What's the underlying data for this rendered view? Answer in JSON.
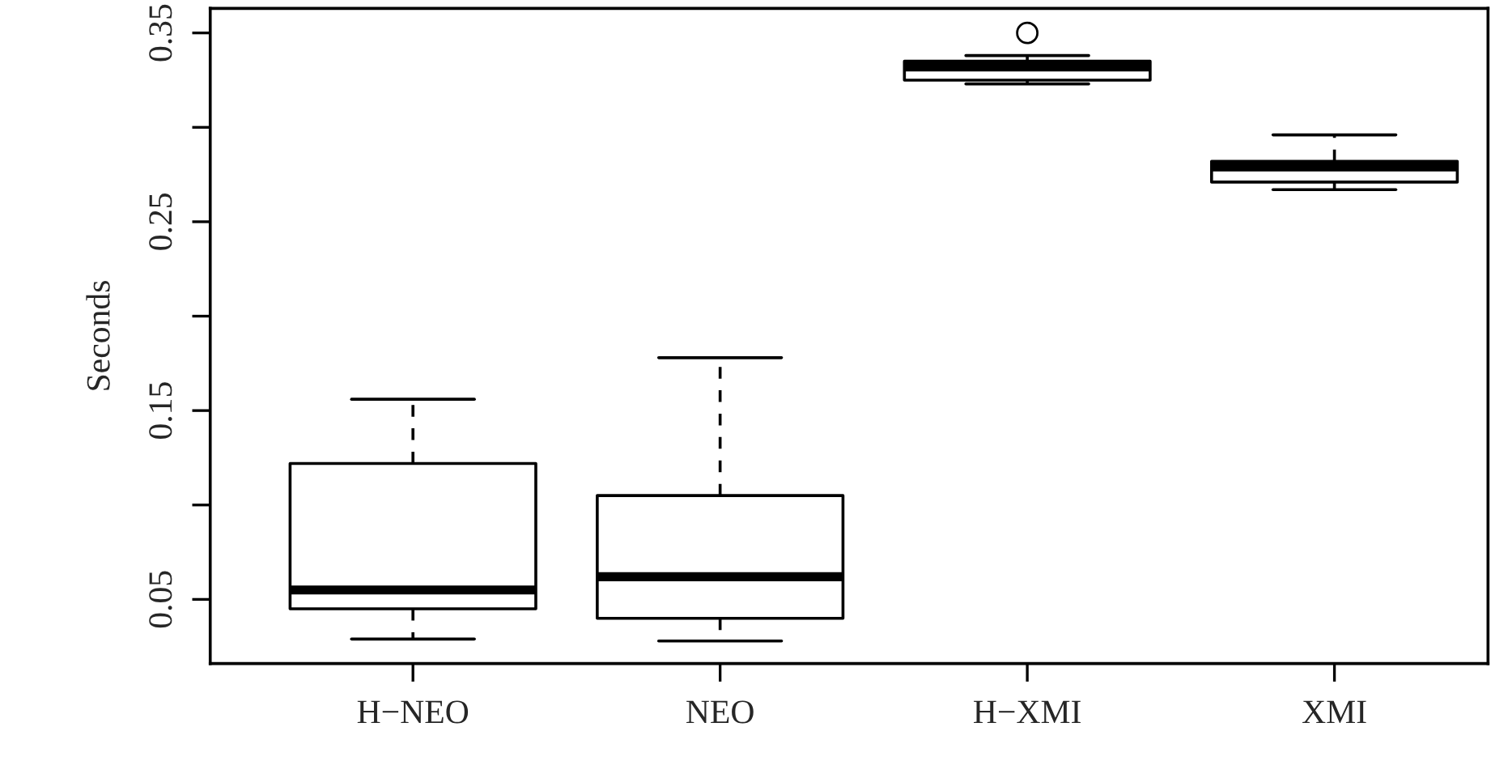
{
  "chart_data": {
    "type": "box",
    "ylabel": "Seconds",
    "categories": [
      "H−NEO",
      "NEO",
      "H−XMI",
      "XMI"
    ],
    "boxes": [
      {
        "low": 0.029,
        "q1": 0.045,
        "median": 0.055,
        "q3": 0.122,
        "high": 0.156
      },
      {
        "low": 0.028,
        "q1": 0.04,
        "median": 0.062,
        "q3": 0.105,
        "high": 0.178
      },
      {
        "low": 0.323,
        "q1": 0.325,
        "median": 0.332,
        "q3": 0.335,
        "high": 0.338,
        "outliers": [
          0.35
        ]
      },
      {
        "low": 0.267,
        "q1": 0.271,
        "median": 0.279,
        "q3": 0.282,
        "high": 0.296
      }
    ],
    "color": "#000000",
    "ylim": [
      0.016,
      0.363
    ],
    "yticks": [
      0.05,
      {
        "value": 0.1,
        "label": null
      },
      0.15,
      {
        "value": 0.2,
        "label": null
      },
      0.25,
      {
        "value": 0.3,
        "label": null
      },
      0.35
    ],
    "grid": false,
    "legend": false
  }
}
